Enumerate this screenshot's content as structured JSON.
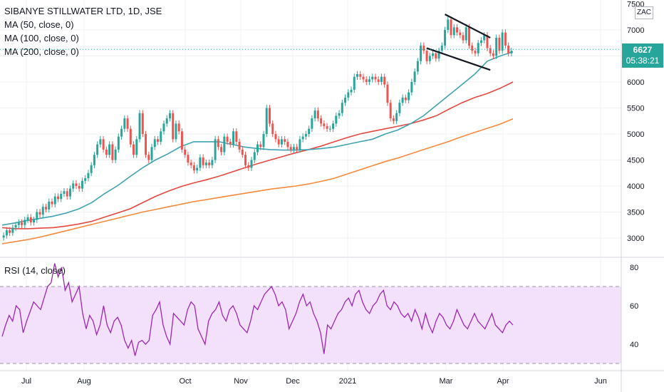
{
  "chart_data": [
    {
      "type": "candlestick",
      "title": "SIBANYE STILLWATER LTD, 1D, JSE",
      "ylim": [
        2750,
        7500
      ],
      "y_ticks": [
        3000,
        3500,
        4000,
        4500,
        5000,
        5500,
        6000,
        6500,
        7000,
        7500
      ],
      "x_ticks": [
        "Jul",
        "Aug",
        "Oct",
        "Nov",
        "Dec",
        "2021",
        "Mar",
        "Apr",
        "Jun"
      ],
      "currency": "ZAC",
      "last_price": "6627",
      "countdown": "05:38:21",
      "colors": {
        "up": "#26a69a",
        "down": "#ef5350",
        "ma50": "#3ea3b0",
        "ma100": "#e8473f",
        "ma200": "#f7893b",
        "channel": "#131722"
      },
      "ohlc": [
        3050,
        3150,
        3100,
        3200,
        3250,
        3300,
        3250,
        3350,
        3400,
        3300,
        3350,
        3500,
        3450,
        3600,
        3550,
        3700,
        3650,
        3800,
        3750,
        3850,
        3900,
        3800,
        3950,
        4050,
        4000,
        3950,
        4100,
        4150,
        4250,
        4400,
        4600,
        4800,
        4900,
        4700,
        4600,
        4800,
        4500,
        4700,
        4950,
        5100,
        5300,
        5100,
        4800,
        4600,
        4900,
        5400,
        5000,
        4600,
        4500,
        4750,
        4900,
        4850,
        5050,
        5200,
        5300,
        5400,
        4900,
        5200,
        5050,
        4700,
        4600,
        4450,
        4400,
        4300,
        4350,
        4550,
        4400,
        4450,
        4400,
        4500,
        4900,
        4750,
        4650,
        4950,
        4850,
        4800,
        5050,
        4850,
        4700,
        4600,
        4400,
        4350,
        4500,
        4650,
        4800,
        4750,
        5000,
        5500,
        5200,
        5000,
        4900,
        4800,
        4900,
        4850,
        4750,
        4700,
        4750,
        4700,
        4900,
        4950,
        5000,
        5100,
        5300,
        5450,
        5300,
        5200,
        5150,
        5100,
        5100,
        5200,
        5350,
        5400,
        5600,
        5700,
        5800,
        5850,
        6100,
        6150,
        6100,
        6050,
        6000,
        6050,
        6100,
        6050,
        6000,
        6100,
        5950,
        5600,
        5300,
        5250,
        5400,
        5600,
        5700,
        5650,
        5800,
        6000,
        6200,
        6400,
        6700,
        6600,
        6400,
        6500,
        6550,
        6450,
        6600,
        6700,
        7000,
        7200,
        6900,
        7050,
        6950,
        6900,
        6800,
        7050,
        6700,
        6600,
        6550,
        6750,
        6800,
        6900,
        6650,
        6550,
        6500,
        6850,
        6600,
        6950,
        6700,
        6550,
        6600
      ],
      "ma50": [
        3250,
        3290,
        3340,
        3380,
        3420,
        3480,
        3560,
        3680,
        3850,
        4000,
        4180,
        4350,
        4500,
        4620,
        4760,
        4850,
        4850,
        4850,
        4800,
        4750,
        4720,
        4700,
        4690,
        4690,
        4700,
        4720,
        4750,
        4800,
        4850,
        4900,
        5000,
        5080,
        5200,
        5350,
        5550,
        5750,
        5950,
        6150,
        6400,
        6500,
        6580
      ],
      "ma100": [
        3200,
        3180,
        3180,
        3190,
        3200,
        3230,
        3270,
        3320,
        3400,
        3480,
        3560,
        3680,
        3800,
        3900,
        3990,
        4060,
        4120,
        4190,
        4270,
        4350,
        4430,
        4500,
        4570,
        4640,
        4700,
        4770,
        4850,
        4930,
        5000,
        5050,
        5100,
        5150,
        5200,
        5270,
        5350,
        5480,
        5600,
        5700,
        5780,
        5880,
        6000
      ],
      "ma200": [
        2890,
        2930,
        2970,
        3020,
        3080,
        3140,
        3200,
        3260,
        3320,
        3380,
        3440,
        3500,
        3550,
        3600,
        3650,
        3700,
        3740,
        3780,
        3820,
        3860,
        3900,
        3940,
        3970,
        4000,
        4040,
        4090,
        4150,
        4230,
        4310,
        4390,
        4470,
        4540,
        4620,
        4700,
        4780,
        4860,
        4950,
        5030,
        5110,
        5190,
        5290
      ],
      "channel_upper": [
        [
          146,
          7300
        ],
        [
          161,
          6850
        ]
      ],
      "channel_lower": [
        [
          140,
          6650
        ],
        [
          161,
          6230
        ]
      ]
    },
    {
      "type": "line",
      "title": "RSI (14, close)",
      "ylim": [
        25,
        85
      ],
      "y_ticks": [
        40,
        60,
        80
      ],
      "band": [
        30,
        70
      ],
      "colors": {
        "line": "#9c27b0",
        "band_fill": "#f3e1fb",
        "band_edge": "#9598a1"
      },
      "values": [
        44,
        50,
        55,
        52,
        60,
        58,
        46,
        52,
        57,
        62,
        60,
        58,
        64,
        70,
        72,
        82,
        75,
        80,
        68,
        72,
        62,
        66,
        70,
        56,
        48,
        55,
        52,
        45,
        50,
        60,
        50,
        46,
        52,
        54,
        50,
        42,
        38,
        42,
        34,
        41,
        42,
        40,
        42,
        55,
        58,
        62,
        50,
        44,
        40,
        56,
        54,
        52,
        50,
        58,
        62,
        60,
        48,
        44,
        40,
        52,
        56,
        58,
        62,
        55,
        52,
        58,
        60,
        56,
        50,
        48,
        46,
        52,
        60,
        58,
        62,
        66,
        68,
        70,
        66,
        60,
        62,
        58,
        48,
        52,
        56,
        62,
        66,
        60,
        62,
        56,
        52,
        46,
        35,
        50,
        48,
        52,
        56,
        58,
        62,
        64,
        60,
        66,
        68,
        62,
        58,
        56,
        60,
        62,
        66,
        68,
        60,
        58,
        62,
        60,
        56,
        54,
        56,
        52,
        58,
        54,
        48,
        56,
        50,
        46,
        52,
        56,
        54,
        50,
        48,
        52,
        58,
        54,
        50,
        48,
        52,
        56,
        52,
        50,
        48,
        52,
        56,
        50,
        48,
        46,
        50,
        52,
        50
      ]
    }
  ]
}
